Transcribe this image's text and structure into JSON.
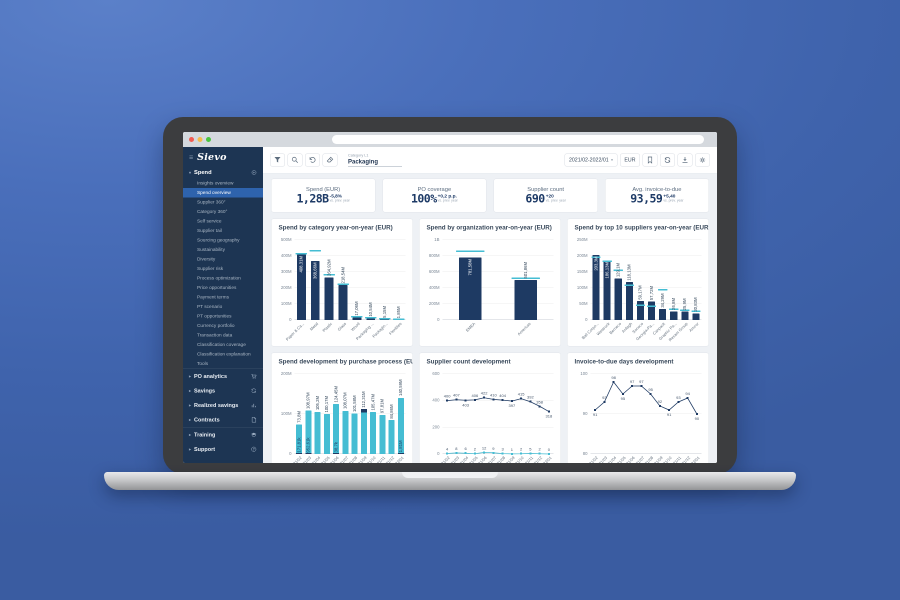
{
  "sidebar": {
    "logo": "Sievo",
    "sections": [
      {
        "type": "group",
        "label": "Spend",
        "icon": "circular-arrow-icon",
        "active": "Spend overview",
        "items": [
          "Insights overview",
          "Spend overview",
          "Supplier 360°",
          "Category 360°",
          "Self service",
          "Supplier tail",
          "Sourcing geography",
          "Sustainability",
          "Diversity",
          "Supplier risk",
          "Process optimization",
          "Price opportunities",
          "Payment terms",
          "PT scenario",
          "PT opportunities",
          "Currency portfolio",
          "Transaction data",
          "Classification coverage",
          "Classification explanation",
          "Tools"
        ]
      },
      {
        "type": "section",
        "label": "PO analytics",
        "icon": "cart-icon",
        "divider": true
      },
      {
        "type": "section",
        "label": "Savings",
        "icon": "sync-icon"
      },
      {
        "type": "section",
        "label": "Realized savings",
        "icon": "chart-icon"
      },
      {
        "type": "section",
        "label": "Contracts",
        "icon": "document-icon"
      },
      {
        "type": "section",
        "label": "Training",
        "icon": "graduation-icon",
        "divider": true,
        "pinned": true
      },
      {
        "type": "section",
        "label": "Support",
        "icon": "help-icon"
      }
    ]
  },
  "toolbar": {
    "left_icons": [
      "filter-icon",
      "search-icon",
      "undo-icon",
      "eraser-icon"
    ],
    "filter_chip": {
      "label": "Category L1",
      "value": "Packaging"
    },
    "period": "2021/02-2022/01",
    "currency": "EUR",
    "right_icons": [
      "bookmark-icon",
      "share-icon",
      "download-icon",
      "settings-icon"
    ]
  },
  "kpis": [
    {
      "title": "Spend (EUR)",
      "value": "1,28B",
      "change": "-5,8%",
      "change_note": "vs. prev. year"
    },
    {
      "title": "PO coverage",
      "value": "100%",
      "change": "+0,2 p.p.",
      "change_note": "vs. prev. year"
    },
    {
      "title": "Supplier count",
      "value": "690",
      "change": "+20",
      "change_note": "vs. prev. year"
    },
    {
      "title": "Avg. invoice-to-due",
      "value": "93,59",
      "change": "+5,40",
      "change_note": "vs. prev. year"
    }
  ],
  "colors": {
    "navy": "#1e3a63",
    "cyan": "#45bdd3",
    "sidebar": "#1d3553",
    "active_item": "#2e63ad"
  },
  "chart_data": [
    {
      "type": "bar",
      "title": "Spend by category year-on-year (EUR)",
      "categories": [
        "Paper & Ca...",
        "Metal",
        "Plastic",
        "Glass",
        "Wood",
        "Packaging ...",
        "Packagin...",
        "Flexibles"
      ],
      "values": [
        408.31,
        368.66,
        264.92,
        218.54,
        17.06,
        10.54,
        5.15,
        1.85
      ],
      "value_labels": [
        "408,31M",
        "368,66M",
        "264,92M",
        "218,54M",
        "17,06M",
        "10,54M",
        "5,15M",
        "1,85M"
      ],
      "prev_year": [
        413,
        432,
        283,
        222,
        21,
        14,
        9,
        5
      ],
      "ylim": [
        0,
        500
      ],
      "yticks": [
        [
          0,
          "0"
        ],
        [
          100,
          "100M"
        ],
        [
          200,
          "200M"
        ],
        [
          300,
          "300M"
        ],
        [
          400,
          "400M"
        ],
        [
          500,
          "500M"
        ]
      ]
    },
    {
      "type": "bar",
      "title": "Spend by organization year-on-year (EUR)",
      "categories": [
        "EMEA",
        "Americas"
      ],
      "values": [
        781.58,
        501.86
      ],
      "value_labels": [
        "781,58M",
        "501,86M"
      ],
      "prev_year": [
        860,
        525
      ],
      "ylim": [
        0,
        1000
      ],
      "yticks": [
        [
          0,
          "0"
        ],
        [
          200,
          "200M"
        ],
        [
          400,
          "400M"
        ],
        [
          600,
          "600M"
        ],
        [
          800,
          "800M"
        ],
        [
          1000,
          "1B"
        ]
      ]
    },
    {
      "type": "bar",
      "title": "Spend by top 10 suppliers year-on-year (EUR)",
      "categories": [
        "Ball Corpo...",
        "Westrock",
        "Berneco",
        "Ardagh",
        "Sonoco",
        "Georgia-Pa...",
        "Canpack",
        "Graphic Pa...",
        "Rexam Group",
        "Amcor"
      ],
      "values": [
        203.3,
        186.13,
        129.1,
        118.13,
        59.17,
        57.72,
        34.29,
        26.8,
        25.9,
        20.83
      ],
      "value_labels": [
        "203,3M",
        "186,13M",
        "129,1M",
        "118,13M",
        "59,17M",
        "57,72M",
        "34,29M",
        "26,8M",
        "25,9M",
        "20,83M"
      ],
      "prev_year": [
        196,
        183,
        155,
        108,
        46,
        43,
        94,
        34,
        31,
        27
      ],
      "ylim": [
        0,
        250
      ],
      "yticks": [
        [
          0,
          "0"
        ],
        [
          50,
          "50M"
        ],
        [
          100,
          "100M"
        ],
        [
          150,
          "150M"
        ],
        [
          200,
          "200M"
        ],
        [
          250,
          "250M"
        ]
      ]
    },
    {
      "type": "bar",
      "stacked": true,
      "title": "Spend development by purchase process (EUR)",
      "categories": [
        "21/02",
        "21/03",
        "21/04",
        "21/05",
        "21/06",
        "21/07",
        "21/08",
        "21/09",
        "21/10",
        "21/11",
        "21/12",
        "22/01"
      ],
      "series": [
        {
          "name": "PO spend",
          "color": "#45bdd3"
        },
        {
          "name": "Non-PO spend",
          "color": "#1e3a63"
        }
      ],
      "totals": [
        73.8,
        108.97,
        105.2,
        100.17,
        124.45,
        108.07,
        101.58,
        112.31,
        105.47,
        97.81,
        84.86,
        140.59
      ],
      "total_labels": [
        "73,8M",
        "108,97M",
        "105,2M",
        "100,17M",
        "124,45M",
        "108,07M",
        "101,58M",
        "112,31M",
        "105,47M",
        "97,81M",
        "84,86M",
        "140,59M"
      ],
      "non_po": [
        0.17,
        0.95,
        0,
        0,
        0.04,
        0,
        0,
        8.0,
        0,
        0,
        0,
        1.81
      ],
      "non_po_labels": [
        "171,81k",
        "952,61k",
        null,
        null,
        "38,7k",
        null,
        null,
        null,
        null,
        null,
        null,
        "1,81M"
      ],
      "non_po_position": [
        "bottom",
        "bottom",
        "bottom",
        "bottom",
        "bottom",
        "bottom",
        "bottom",
        "top",
        "bottom",
        "bottom",
        "bottom",
        "bottom"
      ],
      "ylim": [
        0,
        200
      ],
      "yticks": [
        [
          0,
          "0"
        ],
        [
          100,
          "100M"
        ],
        [
          200,
          "200M"
        ]
      ]
    },
    {
      "type": "line",
      "title": "Supplier count development",
      "x": [
        "21/02",
        "21/03",
        "21/04",
        "21/05",
        "21/06",
        "21/07",
        "21/08",
        "21/09",
        "21/10",
        "21/11",
        "21/12",
        "22/01"
      ],
      "series": [
        {
          "name": "Supplier count",
          "color": "#1e3a63",
          "values": [
            400,
            407,
            403,
            406,
            422,
            410,
            404,
            397,
            415,
            392,
            358,
            318
          ],
          "label_pos": [
            "a",
            "a",
            "b",
            "a",
            "a",
            "a",
            "a",
            "b",
            "a",
            "a",
            "a",
            "b"
          ]
        },
        {
          "name": "New suppliers",
          "color": "#45bdd3",
          "values": [
            4,
            8,
            6,
            2,
            12,
            9,
            3,
            1,
            2,
            5,
            2,
            0
          ],
          "label_pos": [
            "a",
            "a",
            "a",
            "a",
            "a",
            "a",
            "a",
            "a",
            "a",
            "a",
            "a",
            "a"
          ]
        }
      ],
      "ylim": [
        0,
        600
      ],
      "yticks": [
        [
          0,
          "0"
        ],
        [
          200,
          "200"
        ],
        [
          400,
          "400"
        ],
        [
          600,
          "600"
        ]
      ]
    },
    {
      "type": "line",
      "title": "Invoice-to-due days development",
      "x": [
        "21/02",
        "21/03",
        "21/04",
        "21/05",
        "21/06",
        "21/07",
        "21/08",
        "21/09",
        "21/10",
        "21/11",
        "21/12",
        "22/01"
      ],
      "series": [
        {
          "name": "Invoice-to-due days",
          "color": "#1e3a63",
          "values": [
            91,
            93,
            98,
            95,
            97,
            97,
            95,
            92,
            91,
            93,
            94,
            90
          ],
          "label_pos": [
            "b",
            "a",
            "a",
            "b",
            "a",
            "a",
            "a",
            "a",
            "b",
            "a",
            "a",
            "b"
          ]
        }
      ],
      "ylim": [
        80,
        100
      ],
      "yticks": [
        [
          80,
          "80"
        ],
        [
          90,
          "90"
        ],
        [
          100,
          "100"
        ]
      ]
    }
  ]
}
